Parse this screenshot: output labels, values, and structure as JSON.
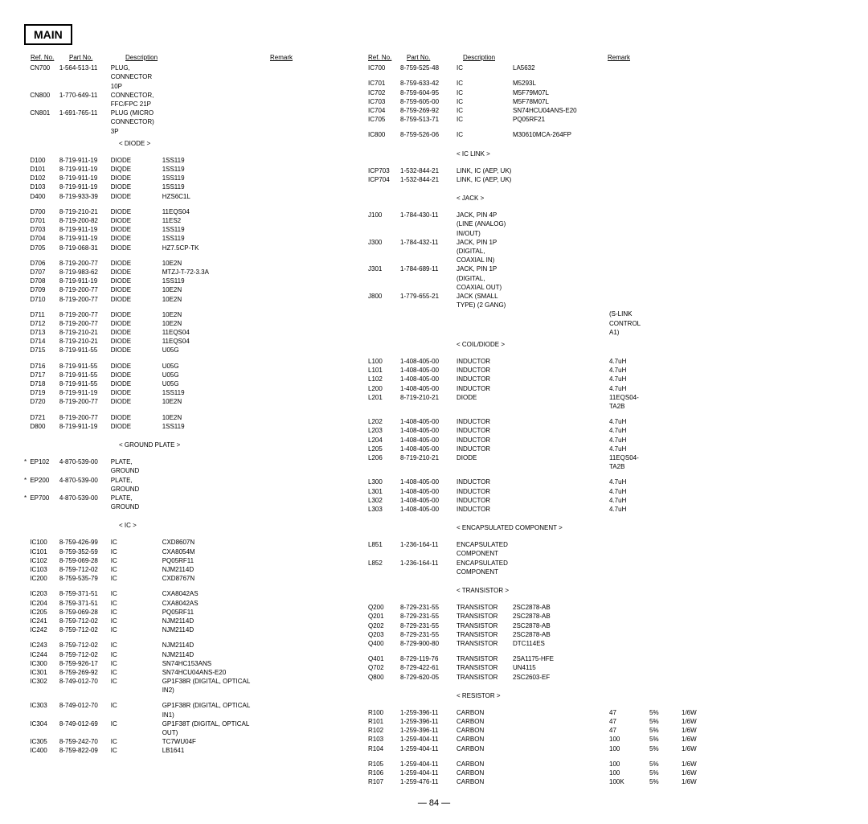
{
  "section_title": "MAIN",
  "page_number": "— 84 —",
  "headers": {
    "ref": "Ref. No.",
    "part": "Part No.",
    "desc": "Description",
    "remark": "Remark"
  },
  "left": [
    {
      "ref": "CN700",
      "part": "1-564-513-11",
      "d1": "PLUG, CONNECTOR 10P"
    },
    {
      "ref": "CN800",
      "part": "1-770-649-11",
      "d1": "CONNECTOR, FFC/FPC 21P"
    },
    {
      "ref": "CN801",
      "part": "1-691-765-11",
      "d1": "PLUG (MICRO CONNECTOR) 3P"
    },
    {
      "sub": "< DIODE >"
    },
    {
      "gap": true
    },
    {
      "ref": "D100",
      "part": "8-719-911-19",
      "d1": "DIODE",
      "d2": "1SS119"
    },
    {
      "ref": "D101",
      "part": "8-719-911-19",
      "d1": "DIQDE",
      "d2": "1SS119"
    },
    {
      "ref": "D102",
      "part": "8-719-911-19",
      "d1": "DIODE",
      "d2": "1SS119"
    },
    {
      "ref": "D103",
      "part": "8-719-911-19",
      "d1": "DIODE",
      "d2": "1SS119"
    },
    {
      "ref": "D400",
      "part": "8-719-933-39",
      "d1": "DIODE",
      "d2": "HZS6C1L"
    },
    {
      "gap": true
    },
    {
      "ref": "D700",
      "part": "8-719-210-21",
      "d1": "DIODE",
      "d2": "11EQS04"
    },
    {
      "ref": "D701",
      "part": "8-719-200-82",
      "d1": "DIODE",
      "d2": "11ES2"
    },
    {
      "ref": "D703",
      "part": "8-719-911-19",
      "d1": "DIODE",
      "d2": "1SS119"
    },
    {
      "ref": "D704",
      "part": "8-719-911-19",
      "d1": "DIODE",
      "d2": "1SS119"
    },
    {
      "ref": "D705",
      "part": "8-719-068-31",
      "d1": "DIODE",
      "d2": "HZ7.5CP-TK"
    },
    {
      "gap": true
    },
    {
      "ref": "D706",
      "part": "8-719-200-77",
      "d1": "DIODE",
      "d2": "10E2N"
    },
    {
      "ref": "D707",
      "part": "8-719-983-62",
      "d1": "DIODE",
      "d2": "MTZJ-T-72-3.3A"
    },
    {
      "ref": "D708",
      "part": "8-719-911-19",
      "d1": "DIODE",
      "d2": "1SS119"
    },
    {
      "ref": "D709",
      "part": "8-719-200-77",
      "d1": "DIODE",
      "d2": "10E2N"
    },
    {
      "ref": "D710",
      "part": "8-719-200-77",
      "d1": "DIODE",
      "d2": "10E2N"
    },
    {
      "gap": true
    },
    {
      "ref": "D711",
      "part": "8-719-200-77",
      "d1": "DIODE",
      "d2": "10E2N"
    },
    {
      "ref": "D712",
      "part": "8-719-200-77",
      "d1": "DIODE",
      "d2": "10E2N"
    },
    {
      "ref": "D713",
      "part": "8-719-210-21",
      "d1": "DIODE",
      "d2": "11EQS04"
    },
    {
      "ref": "D714",
      "part": "8-719-210-21",
      "d1": "DIODE",
      "d2": "11EQS04"
    },
    {
      "ref": "D715",
      "part": "8-719-911-55",
      "d1": "DIODE",
      "d2": "U05G"
    },
    {
      "gap": true
    },
    {
      "ref": "D716",
      "part": "8-719-911-55",
      "d1": "DIODE",
      "d2": "U05G"
    },
    {
      "ref": "D717",
      "part": "8-719-911-55",
      "d1": "DIODE",
      "d2": "U05G"
    },
    {
      "ref": "D718",
      "part": "8-719-911-55",
      "d1": "DIODE",
      "d2": "U05G"
    },
    {
      "ref": "D719",
      "part": "8-719-911-19",
      "d1": "DIODE",
      "d2": "1SS119"
    },
    {
      "ref": "D720",
      "part": "8-719-200-77",
      "d1": "DIODE",
      "d2": "10E2N"
    },
    {
      "gap": true
    },
    {
      "ref": "D721",
      "part": "8-719-200-77",
      "d1": "DIODE",
      "d2": "10E2N"
    },
    {
      "ref": "D800",
      "part": "8-719-911-19",
      "d1": "DIODE",
      "d2": "1SS119"
    },
    {
      "gap": true
    },
    {
      "sub": "< GROUND PLATE >"
    },
    {
      "gap": true
    },
    {
      "star": "*",
      "ref": "EP102",
      "part": "4-870-539-00",
      "d1": "PLATE, GROUND"
    },
    {
      "star": "*",
      "ref": "EP200",
      "part": "4-870-539-00",
      "d1": "PLATE, GROUND"
    },
    {
      "star": "*",
      "ref": "EP700",
      "part": "4-870-539-00",
      "d1": "PLATE, GROUND"
    },
    {
      "gap": true
    },
    {
      "sub": "< IC >"
    },
    {
      "gap": true
    },
    {
      "ref": "IC100",
      "part": "8-759-426-99",
      "d1": "IC",
      "d2": "CXD8607N"
    },
    {
      "ref": "IC101",
      "part": "8-759-352-59",
      "d1": "IC",
      "d2": "CXA8054M"
    },
    {
      "ref": "IC102",
      "part": "8-759-069-28",
      "d1": "IC",
      "d2": "PQ05RF11"
    },
    {
      "ref": "IC103",
      "part": "8-759-712-02",
      "d1": "IC",
      "d2": "NJM2114D"
    },
    {
      "ref": "IC200",
      "part": "8-759-535-79",
      "d1": "IC",
      "d2": "CXD8767N"
    },
    {
      "gap": true
    },
    {
      "ref": "IC203",
      "part": "8-759-371-51",
      "d1": "IC",
      "d2": "CXA8042AS"
    },
    {
      "ref": "IC204",
      "part": "8-759-371-51",
      "d1": "IC",
      "d2": "CXA8042AS"
    },
    {
      "ref": "IC205",
      "part": "8-759-069-28",
      "d1": "IC",
      "d2": "PQ05RF11"
    },
    {
      "ref": "IC241",
      "part": "8-759-712-02",
      "d1": "IC",
      "d2": "NJM2114D"
    },
    {
      "ref": "IC242",
      "part": "8-759-712-02",
      "d1": "IC",
      "d2": "NJM2114D"
    },
    {
      "gap": true
    },
    {
      "ref": "IC243",
      "part": "8-759-712-02",
      "d1": "IC",
      "d2": "NJM2114D"
    },
    {
      "ref": "IC244",
      "part": "8-759-712-02",
      "d1": "IC",
      "d2": "NJM2114D"
    },
    {
      "ref": "IC300",
      "part": "8-759-926-17",
      "d1": "IC",
      "d2": "SN74HC153ANS"
    },
    {
      "ref": "IC301",
      "part": "8-759-269-92",
      "d1": "IC",
      "d2": "SN74HCU04ANS-E20"
    },
    {
      "ref": "IC302",
      "part": "8-749-012-70",
      "d1": "IC",
      "d2": "GP1F38R (DIGITAL, OPTICAL IN2)"
    },
    {
      "gap": true
    },
    {
      "ref": "IC303",
      "part": "8-749-012-70",
      "d1": "IC",
      "d2": "GP1F38R (DIGITAL, OPTICAL IN1)"
    },
    {
      "ref": "IC304",
      "part": "8-749-012-69",
      "d1": "IC",
      "d2": "GP1F38T (DIGITAL, OPTICAL OUT)"
    },
    {
      "ref": "IC305",
      "part": "8-759-242-70",
      "d1": "IC",
      "d2": "TC7WU04F"
    },
    {
      "ref": "IC400",
      "part": "8-759-822-09",
      "d1": "IC",
      "d2": "LB1641"
    }
  ],
  "right": [
    {
      "ref": "IC700",
      "part": "8-759-525-48",
      "d1": "IC",
      "d2": "LA5632"
    },
    {
      "gap": true
    },
    {
      "ref": "IC701",
      "part": "8-759-633-42",
      "d1": "IC",
      "d2": "M5293L"
    },
    {
      "ref": "IC702",
      "part": "8-759-604-95",
      "d1": "IC",
      "d2": "M5F79M07L"
    },
    {
      "ref": "IC703",
      "part": "8-759-605-00",
      "d1": "IC",
      "d2": "M5F78M07L"
    },
    {
      "ref": "IC704",
      "part": "8-759-269-92",
      "d1": "IC",
      "d2": "SN74HCU04ANS-E20"
    },
    {
      "ref": "IC705",
      "part": "8-759-513-71",
      "d1": "IC",
      "d2": "PQ05RF21"
    },
    {
      "gap": true
    },
    {
      "ref": "IC800",
      "part": "8-759-526-06",
      "d1": "IC",
      "d2": "M30610MCA-264FP"
    },
    {
      "gap": true
    },
    {
      "sub": "< IC LINK >"
    },
    {
      "gap": true
    },
    {
      "ref": "ICP703",
      "part": "1-532-844-21",
      "d1": "LINK, IC (AEP, UK)"
    },
    {
      "ref": "ICP704",
      "part": "1-532-844-21",
      "d1": "LINK, IC (AEP, UK)"
    },
    {
      "gap": true
    },
    {
      "sub": "< JACK >"
    },
    {
      "gap": true
    },
    {
      "ref": "J100",
      "part": "1-784-430-11",
      "d1": "JACK, PIN 4P (LINE (ANALOG) IN/OUT)"
    },
    {
      "ref": "J300",
      "part": "1-784-432-11",
      "d1": "JACK, PIN 1P (DIGITAL, COAXIAL IN)"
    },
    {
      "ref": "J301",
      "part": "1-784-689-11",
      "d1": "JACK, PIN 1P (DIGITAL, COAXIAL OUT)"
    },
    {
      "ref": "J800",
      "part": "1-779-655-21",
      "d1": "JACK (SMALL TYPE) (2 GANG)"
    },
    {
      "ref": "",
      "part": "",
      "d1": "",
      "d2": "",
      "e1": "(S-LINK CONTROL A1)"
    },
    {
      "sub": "< COIL/DIODE >"
    },
    {
      "gap": true
    },
    {
      "ref": "L100",
      "part": "1-408-405-00",
      "d1": "INDUCTOR",
      "d2": "",
      "e1": "4.7uH"
    },
    {
      "ref": "L101",
      "part": "1-408-405-00",
      "d1": "INDUCTOR",
      "d2": "",
      "e1": "4.7uH"
    },
    {
      "ref": "L102",
      "part": "1-408-405-00",
      "d1": "INDUCTOR",
      "d2": "",
      "e1": "4.7uH"
    },
    {
      "ref": "L200",
      "part": "1-408-405-00",
      "d1": "INDUCTOR",
      "d2": "",
      "e1": "4.7uH"
    },
    {
      "ref": "L201",
      "part": "8-719-210-21",
      "d1": "DIODE",
      "d2": "",
      "e1": "11EQS04-TA2B"
    },
    {
      "gap": true
    },
    {
      "ref": "L202",
      "part": "1-408-405-00",
      "d1": "INDUCTOR",
      "d2": "",
      "e1": "4.7uH"
    },
    {
      "ref": "L203",
      "part": "1-408-405-00",
      "d1": "INDUCTOR",
      "d2": "",
      "e1": "4.7uH"
    },
    {
      "ref": "L204",
      "part": "1-408-405-00",
      "d1": "INDUCTOR",
      "d2": "",
      "e1": "4.7uH"
    },
    {
      "ref": "L205",
      "part": "1-408-405-00",
      "d1": "INDUCTOR",
      "d2": "",
      "e1": "4.7uH"
    },
    {
      "ref": "L206",
      "part": "8-719-210-21",
      "d1": "DIODE",
      "d2": "",
      "e1": "11EQS04-TA2B"
    },
    {
      "gap": true
    },
    {
      "ref": "L300",
      "part": "1-408-405-00",
      "d1": "INDUCTOR",
      "d2": "",
      "e1": "4.7uH"
    },
    {
      "ref": "L301",
      "part": "1-408-405-00",
      "d1": "INDUCTOR",
      "d2": "",
      "e1": "4.7uH"
    },
    {
      "ref": "L302",
      "part": "1-408-405-00",
      "d1": "INDUCTOR",
      "d2": "",
      "e1": "4.7uH"
    },
    {
      "ref": "L303",
      "part": "1-408-405-00",
      "d1": "INDUCTOR",
      "d2": "",
      "e1": "4.7uH"
    },
    {
      "gap": true
    },
    {
      "sub": "< ENCAPSULATED COMPONENT >"
    },
    {
      "gap": true
    },
    {
      "ref": "L851",
      "part": "1-236-164-11",
      "d1": "ENCAPSULATED COMPONENT"
    },
    {
      "ref": "L852",
      "part": "1-236-164-11",
      "d1": "ENCAPSULATED COMPONENT"
    },
    {
      "gap": true
    },
    {
      "sub": "< TRANSISTOR >"
    },
    {
      "gap": true
    },
    {
      "ref": "Q200",
      "part": "8-729-231-55",
      "d1": "TRANSISTOR",
      "d2": "2SC2878-AB"
    },
    {
      "ref": "Q201",
      "part": "8-729-231-55",
      "d1": "TRANSISTOR",
      "d2": "2SC2878-AB"
    },
    {
      "ref": "Q202",
      "part": "8-729-231-55",
      "d1": "TRANSISTOR",
      "d2": "2SC2878-AB"
    },
    {
      "ref": "Q203",
      "part": "8-729-231-55",
      "d1": "TRANSISTOR",
      "d2": "2SC2878-AB"
    },
    {
      "ref": "Q400",
      "part": "8-729-900-80",
      "d1": "TRANSISTOR",
      "d2": "DTC114ES"
    },
    {
      "gap": true
    },
    {
      "ref": "Q401",
      "part": "8-729-119-76",
      "d1": "TRANSISTOR",
      "d2": "2SA1175-HFE"
    },
    {
      "ref": "Q702",
      "part": "8-729-422-61",
      "d1": "TRANSISTOR",
      "d2": "UN4115"
    },
    {
      "ref": "Q800",
      "part": "8-729-620-05",
      "d1": "TRANSISTOR",
      "d2": "2SC2603-EF"
    },
    {
      "gap": true
    },
    {
      "sub": "< RESISTOR >"
    },
    {
      "gap": true
    },
    {
      "ref": "R100",
      "part": "1-259-396-11",
      "d1": "CARBON",
      "d2": "",
      "e1": "47",
      "e2": "5%",
      "e3": "1/6W"
    },
    {
      "ref": "R101",
      "part": "1-259-396-11",
      "d1": "CARBON",
      "d2": "",
      "e1": "47",
      "e2": "5%",
      "e3": "1/6W"
    },
    {
      "ref": "R102",
      "part": "1-259-396-11",
      "d1": "CARBON",
      "d2": "",
      "e1": "47",
      "e2": "5%",
      "e3": "1/6W"
    },
    {
      "ref": "R103",
      "part": "1-259-404-11",
      "d1": "CARBON",
      "d2": "",
      "e1": "100",
      "e2": "5%",
      "e3": "1/6W"
    },
    {
      "ref": "R104",
      "part": "1-259-404-11",
      "d1": "CARBON",
      "d2": "",
      "e1": "100",
      "e2": "5%",
      "e3": "1/6W"
    },
    {
      "gap": true
    },
    {
      "ref": "R105",
      "part": "1-259-404-11",
      "d1": "CARBON",
      "d2": "",
      "e1": "100",
      "e2": "5%",
      "e3": "1/6W"
    },
    {
      "ref": "R106",
      "part": "1-259-404-11",
      "d1": "CARBON",
      "d2": "",
      "e1": "100",
      "e2": "5%",
      "e3": "1/6W"
    },
    {
      "ref": "R107",
      "part": "1-259-476-11",
      "d1": "CARBON",
      "d2": "",
      "e1": "100K",
      "e2": "5%",
      "e3": "1/6W"
    }
  ]
}
